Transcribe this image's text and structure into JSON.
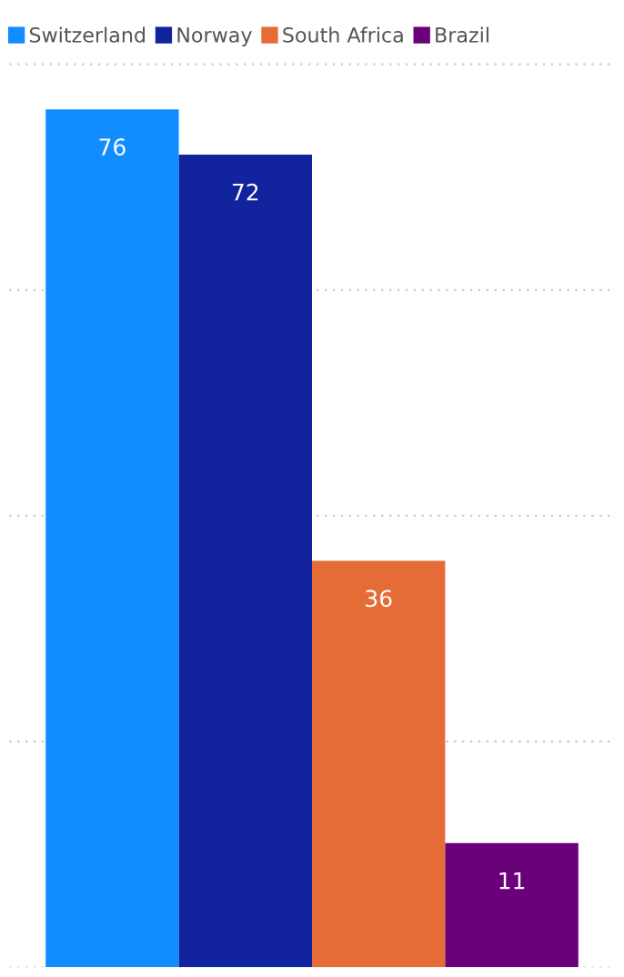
{
  "chart_data": {
    "type": "bar",
    "categories": [
      null
    ],
    "series": [
      {
        "name": "Switzerland",
        "color": "#118dff",
        "values": [
          76
        ]
      },
      {
        "name": "Norway",
        "color": "#12239e",
        "values": [
          72
        ]
      },
      {
        "name": "South Africa",
        "color": "#e66c37",
        "values": [
          36
        ]
      },
      {
        "name": "Brazil",
        "color": "#6b007b",
        "values": [
          11
        ]
      }
    ],
    "data_labels": true,
    "ylim": [
      0,
      80.5
    ],
    "yticks": [
      {
        "value": 0,
        "label": null
      },
      {
        "value": 20,
        "label": null
      },
      {
        "value": 40,
        "label": null
      },
      {
        "value": 60,
        "label": null
      },
      {
        "value": 80,
        "label": null
      }
    ],
    "grid": "y",
    "legend": "top left"
  }
}
